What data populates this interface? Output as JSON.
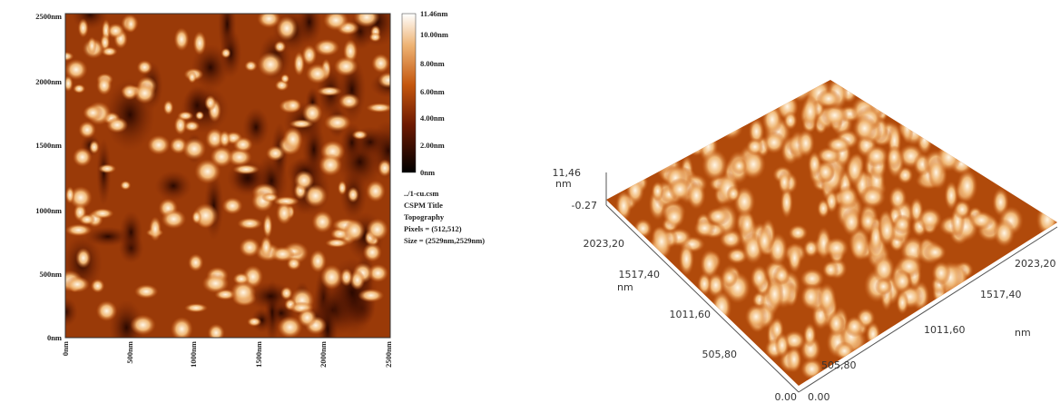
{
  "image_2d": {
    "y_ticks": [
      "2500nm",
      "2000nm",
      "1500nm",
      "1000nm",
      "500nm",
      "0nm"
    ],
    "x_ticks": [
      "0nm",
      "500nm",
      "1000nm",
      "1500nm",
      "2000nm",
      "2500nm"
    ],
    "colorbar": {
      "labels": [
        "11.46nm",
        "10.00nm",
        "8.00nm",
        "6.00nm",
        "4.00nm",
        "2.00nm",
        "0nm"
      ]
    },
    "info": [
      "../1-cu.csm",
      "CSPM Title",
      "Topography",
      "Pixels = (512,512)",
      "Size = (2529nm,2529nm)"
    ]
  },
  "surface_3d": {
    "z_max": "11,46",
    "z_unit": "nm",
    "z_min": "-0.27",
    "left_axis_ticks": [
      "2023,20",
      "1517,40",
      "1011,60",
      "505,80",
      "0.00"
    ],
    "left_axis_unit": "nm",
    "right_axis_ticks": [
      "0.00",
      "505,80",
      "1011,60",
      "1517,40",
      "2023,20"
    ],
    "right_axis_unit": "nm"
  }
}
